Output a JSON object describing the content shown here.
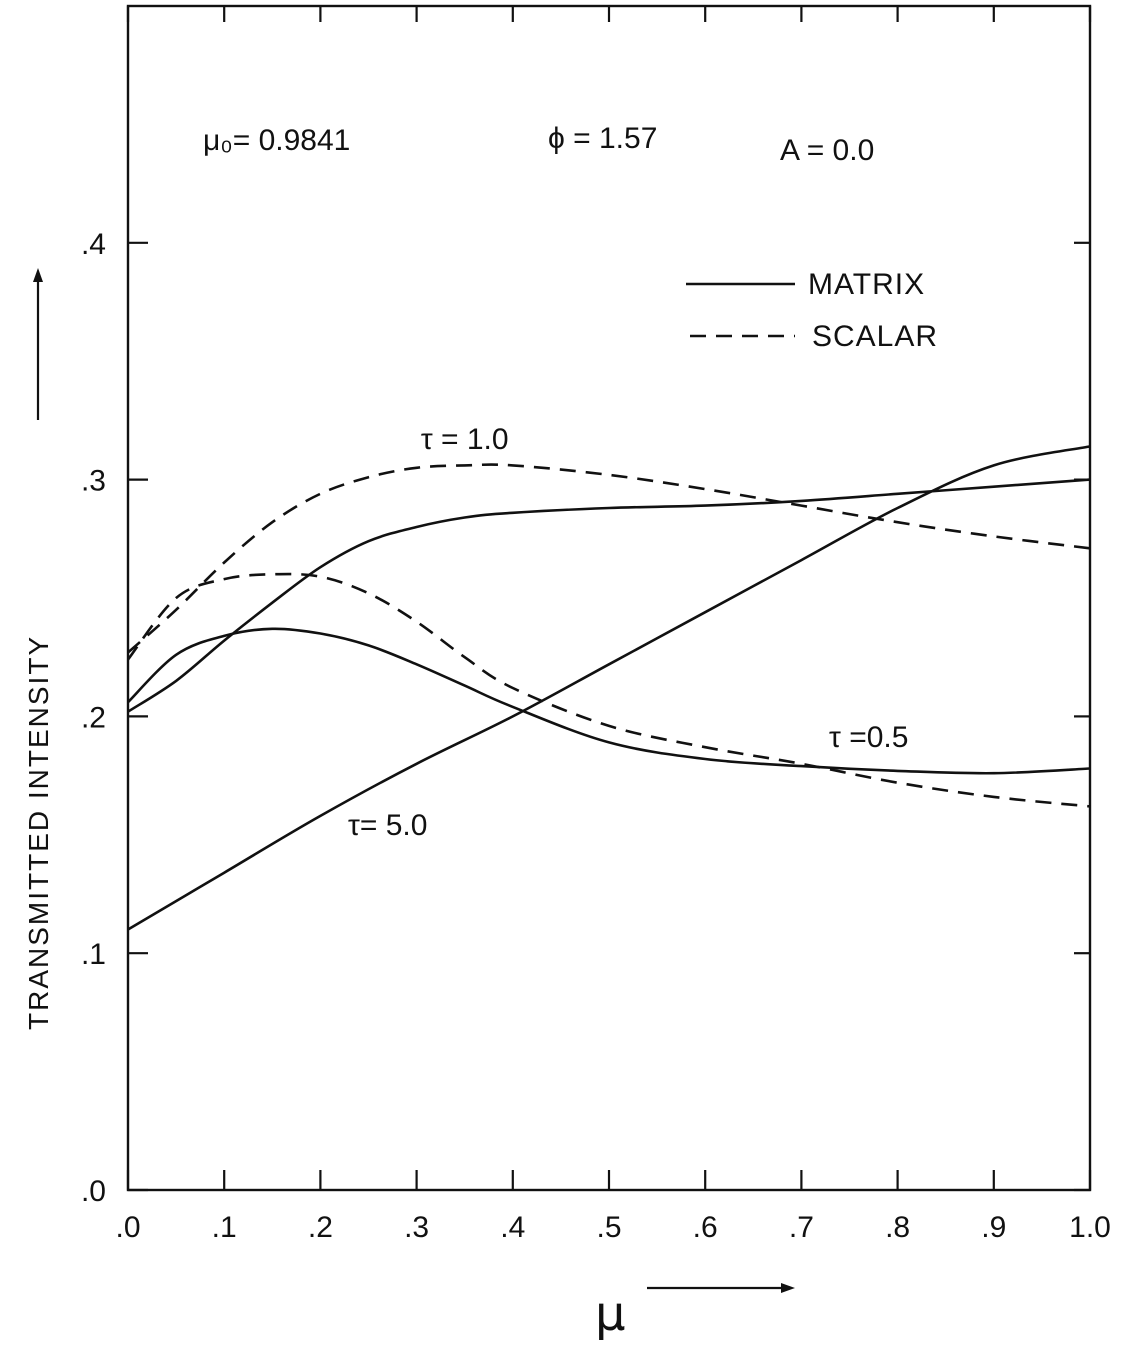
{
  "chart_data": {
    "type": "line",
    "xlabel": "μ",
    "ylabel": "TRANSMITTED INTENSITY",
    "xlim": [
      0.0,
      1.0
    ],
    "ylim": [
      0.0,
      0.5
    ],
    "x_ticks": [
      {
        "value": 0.0,
        "label": ".0"
      },
      {
        "value": 0.1,
        "label": ".1"
      },
      {
        "value": 0.2,
        "label": ".2"
      },
      {
        "value": 0.3,
        "label": ".3"
      },
      {
        "value": 0.4,
        "label": ".4"
      },
      {
        "value": 0.5,
        "label": ".5"
      },
      {
        "value": 0.6,
        "label": ".6"
      },
      {
        "value": 0.7,
        "label": ".7"
      },
      {
        "value": 0.8,
        "label": ".8"
      },
      {
        "value": 0.9,
        "label": ".9"
      },
      {
        "value": 1.0,
        "label": "1.0"
      }
    ],
    "y_ticks": [
      {
        "value": 0.0,
        "label": ".0"
      },
      {
        "value": 0.1,
        "label": ".1"
      },
      {
        "value": 0.2,
        "label": ".2"
      },
      {
        "value": 0.3,
        "label": ".3"
      },
      {
        "value": 0.4,
        "label": ".4"
      }
    ],
    "grid": false,
    "params": {
      "mu0": "μ₀= 0.9841",
      "phi": "ϕ = 1.57",
      "A": "A = 0.0"
    },
    "legend": {
      "position": "top-right",
      "entries": [
        {
          "label": "MATRIX",
          "style": "solid"
        },
        {
          "label": "SCALAR",
          "style": "dashed"
        }
      ]
    },
    "series": [
      {
        "tau": "1.0",
        "method": "matrix",
        "style": "solid",
        "x": [
          0.0,
          0.05,
          0.1,
          0.15,
          0.2,
          0.25,
          0.3,
          0.35,
          0.4,
          0.5,
          0.6,
          0.7,
          0.8,
          0.9,
          1.0
        ],
        "y": [
          0.202,
          0.215,
          0.232,
          0.248,
          0.263,
          0.274,
          0.28,
          0.284,
          0.286,
          0.288,
          0.289,
          0.291,
          0.294,
          0.297,
          0.3
        ]
      },
      {
        "tau": "1.0",
        "method": "scalar",
        "style": "dashed",
        "x": [
          0.0,
          0.05,
          0.1,
          0.15,
          0.2,
          0.25,
          0.3,
          0.35,
          0.4,
          0.5,
          0.6,
          0.7,
          0.8,
          0.9,
          1.0
        ],
        "y": [
          0.227,
          0.245,
          0.265,
          0.282,
          0.294,
          0.301,
          0.305,
          0.306,
          0.306,
          0.302,
          0.296,
          0.289,
          0.282,
          0.276,
          0.271
        ]
      },
      {
        "tau": "0.5",
        "method": "matrix",
        "style": "solid",
        "x": [
          0.0,
          0.05,
          0.1,
          0.15,
          0.2,
          0.25,
          0.3,
          0.35,
          0.4,
          0.5,
          0.6,
          0.7,
          0.8,
          0.9,
          1.0
        ],
        "y": [
          0.206,
          0.226,
          0.234,
          0.237,
          0.235,
          0.23,
          0.222,
          0.213,
          0.204,
          0.189,
          0.182,
          0.179,
          0.177,
          0.176,
          0.178
        ]
      },
      {
        "tau": "0.5",
        "method": "scalar",
        "style": "dashed",
        "x": [
          0.0,
          0.05,
          0.1,
          0.15,
          0.2,
          0.25,
          0.3,
          0.35,
          0.4,
          0.5,
          0.6,
          0.7,
          0.8,
          0.9,
          1.0
        ],
        "y": [
          0.224,
          0.25,
          0.258,
          0.26,
          0.259,
          0.252,
          0.24,
          0.225,
          0.212,
          0.196,
          0.187,
          0.18,
          0.172,
          0.166,
          0.162
        ]
      },
      {
        "tau": "5.0",
        "method": "matrix",
        "style": "solid",
        "x": [
          0.0,
          0.1,
          0.2,
          0.3,
          0.4,
          0.5,
          0.6,
          0.7,
          0.8,
          0.9,
          1.0
        ],
        "y": [
          0.11,
          0.134,
          0.158,
          0.18,
          0.2,
          0.222,
          0.244,
          0.266,
          0.288,
          0.306,
          0.314
        ]
      }
    ],
    "curve_labels": [
      {
        "text": "τ = 1.0",
        "x": 0.35,
        "y": 0.313
      },
      {
        "text": "τ =0.5",
        "x": 0.77,
        "y": 0.187
      },
      {
        "text": "τ= 5.0",
        "x": 0.27,
        "y": 0.15
      }
    ]
  }
}
